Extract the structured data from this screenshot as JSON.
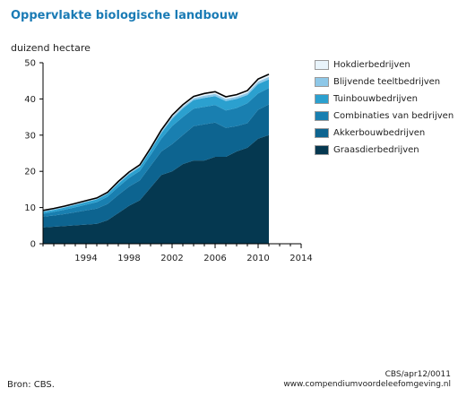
{
  "title": "Oppervlakte biologische landbouw",
  "source": "Bron: CBS.",
  "credit": {
    "code": "CBS/apr12/0011",
    "url": "www.compendiumvoordeleefomgeving.nl"
  },
  "chart_data": {
    "type": "area",
    "stacked": true,
    "ylabel": "duizend hectare",
    "xlim": [
      1990,
      2014
    ],
    "ylim": [
      0,
      50
    ],
    "xticks": [
      1994,
      1998,
      2002,
      2006,
      2010,
      2014
    ],
    "yticks": [
      0,
      10,
      20,
      30,
      40,
      50
    ],
    "grid": false,
    "legend_position": "right",
    "x": [
      1990,
      1991,
      1992,
      1993,
      1994,
      1995,
      1996,
      1997,
      1998,
      1999,
      2000,
      2001,
      2002,
      2003,
      2004,
      2005,
      2006,
      2007,
      2008,
      2009,
      2010,
      2011
    ],
    "series": [
      {
        "name": "Graasdierbedrijven",
        "color": "#053850",
        "values": [
          4.5,
          4.7,
          4.9,
          5.1,
          5.3,
          5.5,
          6.5,
          8.5,
          10.5,
          12,
          15.5,
          19,
          20,
          22,
          23,
          23,
          24,
          24,
          25.5,
          26.5,
          29,
          30
        ]
      },
      {
        "name": "Akkerbouwbedrijven",
        "color": "#0d6490",
        "values": [
          3,
          3.1,
          3.3,
          3.6,
          3.9,
          4.2,
          4.5,
          5,
          5.3,
          5.5,
          6,
          6.5,
          7.5,
          8,
          9.5,
          10,
          9.5,
          8,
          7,
          6.8,
          8,
          8.5
        ]
      },
      {
        "name": "Combinaties van bedrijven",
        "color": "#197fb0",
        "values": [
          0.8,
          1,
          1.2,
          1.4,
          1.6,
          1.8,
          2,
          2.2,
          2.4,
          2.6,
          3,
          3.5,
          5,
          5,
          4.8,
          4.8,
          4.8,
          4.8,
          5,
          5.5,
          4.5,
          4.5
        ]
      },
      {
        "name": "Tuinbouwbedrijven",
        "color": "#2ba0cf",
        "values": [
          0.5,
          0.55,
          0.6,
          0.65,
          0.7,
          0.75,
          0.8,
          0.9,
          1,
          1.1,
          1.3,
          1.6,
          2,
          2.4,
          2.4,
          2.5,
          2.5,
          2.6,
          2.5,
          2.3,
          2.6,
          2.4
        ]
      },
      {
        "name": "Blijvende teeltbedrijven",
        "color": "#8ec8e8",
        "values": [
          0.2,
          0.2,
          0.2,
          0.2,
          0.2,
          0.2,
          0.2,
          0.3,
          0.3,
          0.3,
          0.3,
          0.4,
          0.5,
          0.5,
          0.5,
          0.6,
          0.6,
          0.6,
          0.6,
          0.6,
          0.7,
          0.7
        ]
      },
      {
        "name": "Hokdierbedrijven",
        "color": "#e9f4fb",
        "values": [
          0.2,
          0.2,
          0.2,
          0.2,
          0.2,
          0.2,
          0.2,
          0.3,
          0.3,
          0.3,
          0.3,
          0.4,
          0.5,
          0.5,
          0.5,
          0.6,
          0.6,
          0.6,
          0.6,
          0.6,
          0.7,
          0.7
        ]
      }
    ]
  }
}
